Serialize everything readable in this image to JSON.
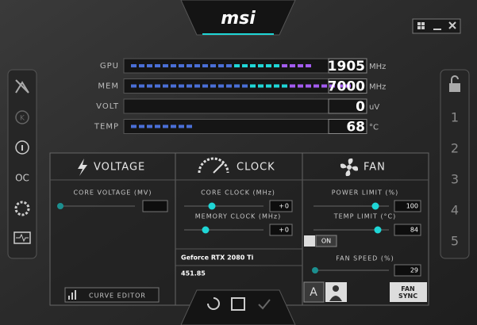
{
  "header": {
    "logo": "msi"
  },
  "meters": [
    {
      "label": "GPU",
      "value": "1905",
      "unit": "MHz"
    },
    {
      "label": "MEM",
      "value": "7000",
      "unit": "MHz"
    },
    {
      "label": "VOLT",
      "value": "0",
      "unit": "uV"
    },
    {
      "label": "TEMP",
      "value": "68",
      "unit": "°C"
    }
  ],
  "sidebar_left": {
    "items": [
      "K",
      "OC"
    ]
  },
  "sidebar_right": {
    "profiles": [
      "1",
      "2",
      "3",
      "4",
      "5"
    ]
  },
  "panels": {
    "voltage": {
      "title": "VOLTAGE",
      "core_voltage_label": "CORE VOLTAGE (MV)",
      "curve_editor": "CURVE EDITOR"
    },
    "clock": {
      "title": "CLOCK",
      "core_clock_label": "CORE CLOCK (MHz)",
      "core_clock_value": "+0",
      "memory_clock_label": "MEMORY CLOCK (MHz)",
      "memory_clock_value": "+0",
      "gpu_name": "Geforce RTX 2080 Ti",
      "driver_version": "451.85"
    },
    "fan": {
      "title": "FAN",
      "power_limit_label": "POWER LIMIT (%)",
      "power_limit_value": "100",
      "temp_limit_label": "TEMP LIMIT (°C)",
      "temp_limit_value": "84",
      "link_toggle": "ON",
      "fan_speed_label": "FAN SPEED (%)",
      "fan_speed_value": "29",
      "auto_button": "A",
      "fan_sync": "FAN SYNC"
    }
  }
}
